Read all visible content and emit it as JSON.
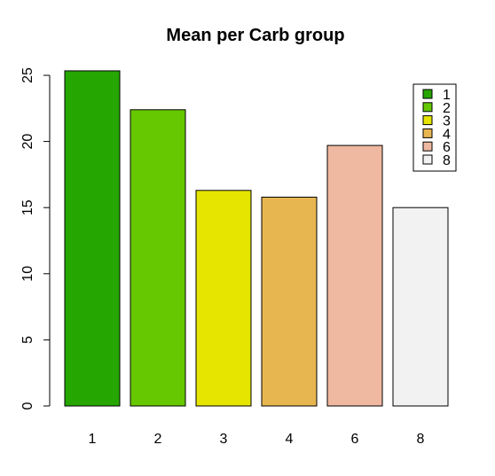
{
  "chart_data": {
    "type": "bar",
    "title": "Mean per Carb group",
    "xlabel": "",
    "ylabel": "",
    "categories": [
      "1",
      "2",
      "3",
      "4",
      "6",
      "8"
    ],
    "values": [
      25.34,
      22.4,
      16.3,
      15.79,
      19.7,
      15.0
    ],
    "colors": [
      "#26A600",
      "#66C800",
      "#E5E500",
      "#E8B651",
      "#EFB8A0",
      "#F2F2F2"
    ],
    "ylim": [
      0,
      25
    ],
    "yticks": [
      "0",
      "5",
      "10",
      "15",
      "20",
      "25"
    ],
    "legend": {
      "position": "top-right",
      "labels": [
        "1",
        "2",
        "3",
        "4",
        "6",
        "8"
      ]
    },
    "grid": false
  }
}
